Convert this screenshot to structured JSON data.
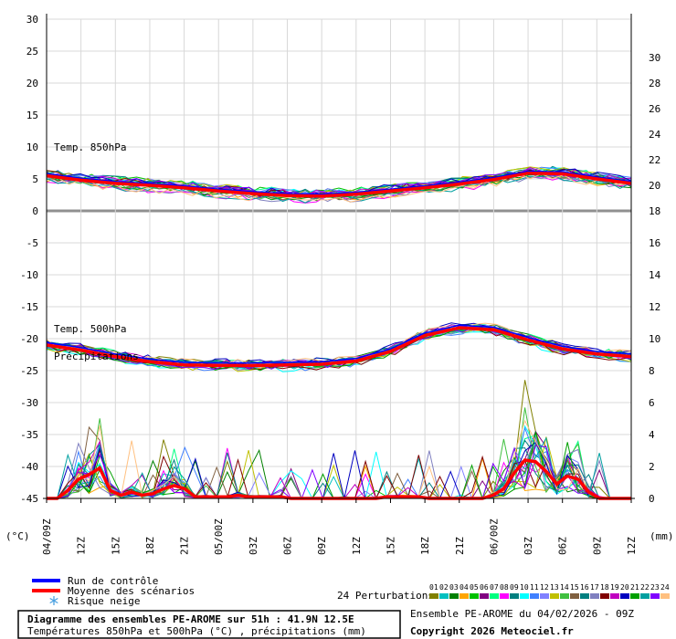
{
  "chart_data": {
    "type": "line",
    "left_axis": {
      "unit": "(°C)",
      "min": -45,
      "max": 30,
      "ticks": [
        -45,
        -40,
        -35,
        -30,
        -25,
        -20,
        -15,
        -10,
        -5,
        0,
        5,
        10,
        15,
        20,
        25,
        30
      ]
    },
    "right_axis": {
      "unit": "(mm)",
      "temp_ticks": [
        18,
        20,
        22,
        24,
        26,
        28,
        30
      ],
      "precip_ticks": [
        0,
        2,
        4,
        6,
        8,
        10,
        12,
        14,
        16
      ]
    },
    "x_labels": [
      "04/09Z",
      "12Z",
      "15Z",
      "18Z",
      "21Z",
      "05/00Z",
      "03Z",
      "06Z",
      "09Z",
      "12Z",
      "15Z",
      "18Z",
      "21Z",
      "06/00Z",
      "03Z",
      "06Z",
      "09Z",
      "12Z"
    ],
    "panel_labels": {
      "t850": "Temp. 850hPa",
      "t500": "Temp. 500hPa",
      "precip": "Précipitations"
    },
    "t850_mean": [
      5.5,
      4.8,
      4.3,
      4.0,
      3.6,
      3.1,
      2.7,
      2.4,
      2.3,
      2.6,
      3.1,
      3.6,
      4.2,
      4.9,
      5.9,
      5.8,
      5.0,
      4.3
    ],
    "t500_mean": [
      -21.0,
      -21.8,
      -22.8,
      -23.6,
      -24.1,
      -24.2,
      -24.2,
      -24.1,
      -24.0,
      -23.5,
      -22.0,
      -19.5,
      -18.3,
      -18.6,
      -20.2,
      -21.6,
      -22.4,
      -22.8
    ],
    "precip_mean": [
      0,
      0,
      0.5,
      1.2,
      1.5,
      1.9,
      0.5,
      0.2,
      0.4,
      0.2,
      0.3,
      0.6,
      0.8,
      0.6,
      0.1,
      0.1,
      0.1,
      0.1,
      0.2,
      0.1,
      0.1,
      0.1,
      0.1,
      0,
      0,
      0,
      0,
      0,
      0,
      0,
      0,
      0,
      0.1,
      0.1,
      0.1,
      0.1,
      0,
      0,
      0,
      0,
      0,
      0,
      0.2,
      0.6,
      1.6,
      2.4,
      2.3,
      1.7,
      0.9,
      1.4,
      1.2,
      0.4,
      0,
      0,
      0,
      0
    ]
  },
  "legend": {
    "control": "Run de contrôle",
    "mean": "Moyenne des scénarios",
    "snow": "Risque neige",
    "perturbations": "24 Perturbations",
    "numbers": [
      "01",
      "02",
      "03",
      "04",
      "05",
      "06",
      "07",
      "08",
      "09",
      "10",
      "11",
      "12",
      "13",
      "14",
      "15",
      "16",
      "17",
      "18",
      "19",
      "20",
      "21",
      "22",
      "23",
      "24"
    ],
    "colors": [
      "#808000",
      "#00c0c0",
      "#008000",
      "#ffa500",
      "#00c000",
      "#800080",
      "#00ff80",
      "#ff00ff",
      "#008080",
      "#00ffff",
      "#4080ff",
      "#8080ff",
      "#c0c000",
      "#40c040",
      "#806040",
      "#008080",
      "#8080c0",
      "#800000",
      "#c000c0",
      "#0000c0",
      "#00a000",
      "#00a0a0",
      "#8000ff",
      "#ffc080"
    ]
  },
  "footer": {
    "title": "Diagramme des ensembles PE-AROME sur 51h : 41.9N 12.5E",
    "subtitle": "Températures 850hPa et 500hPa (°C) , précipitations (mm)",
    "ensemble": "Ensemble PE-AROME du 04/02/2026 - 09Z",
    "copyright": "Copyright 2026 Meteociel.fr"
  },
  "colors": {
    "mean": "#ff0000",
    "control": "#0000ff"
  }
}
